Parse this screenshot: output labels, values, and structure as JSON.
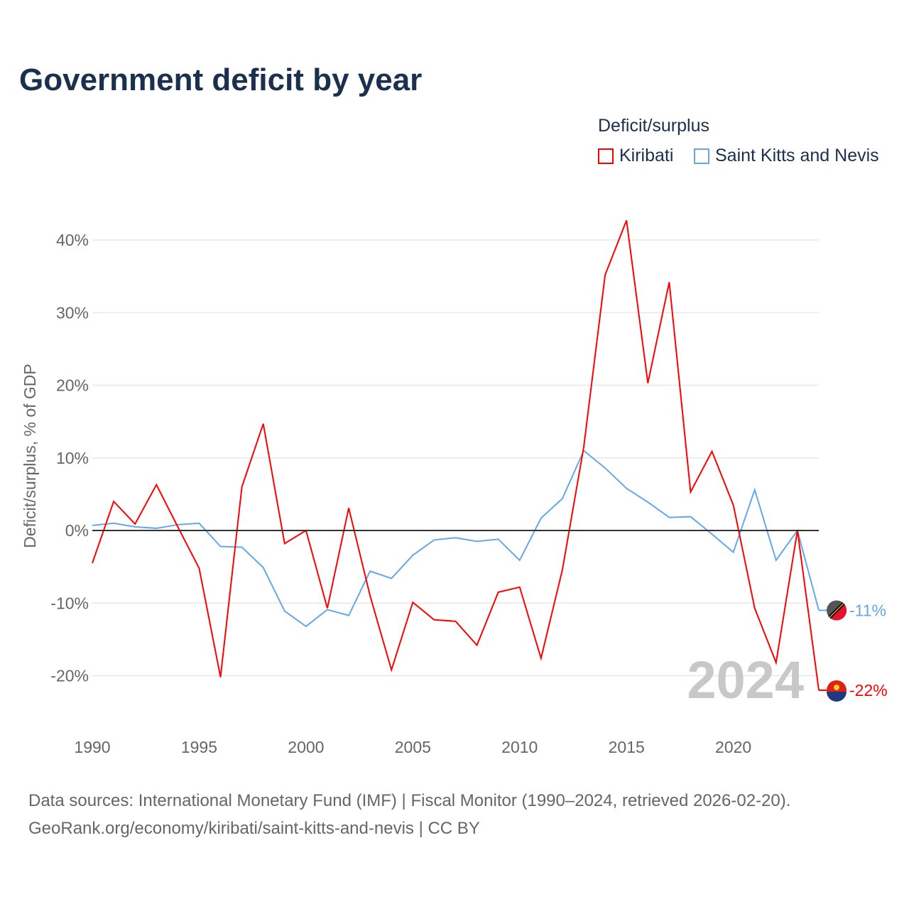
{
  "chart_data": {
    "type": "line",
    "title": "Government deficit by year",
    "xlabel": "",
    "ylabel": "Deficit/surplus, % of GDP",
    "legend_title": "Deficit/surplus",
    "legend_position": "top-right",
    "xlim": [
      1990,
      2024
    ],
    "ylim": [
      -25,
      45
    ],
    "x_ticks": [
      1990,
      1995,
      2000,
      2005,
      2010,
      2015,
      2020
    ],
    "x_tick_labels": [
      "1990",
      "1995",
      "2000",
      "2005",
      "2010",
      "2015",
      "2020"
    ],
    "y_ticks": [
      -20,
      -10,
      0,
      10,
      20,
      30,
      40
    ],
    "y_tick_labels": [
      "-20%",
      "-10%",
      "0%",
      "10%",
      "20%",
      "30%",
      "40%"
    ],
    "grid": true,
    "year_watermark": "2024",
    "x": [
      1990,
      1991,
      1992,
      1993,
      1994,
      1995,
      1996,
      1997,
      1998,
      1999,
      2000,
      2001,
      2002,
      2003,
      2004,
      2005,
      2006,
      2007,
      2008,
      2009,
      2010,
      2011,
      2012,
      2013,
      2014,
      2015,
      2016,
      2017,
      2018,
      2019,
      2020,
      2021,
      2022,
      2023,
      2024
    ],
    "series": [
      {
        "name": "Kiribati",
        "color": "#ff0000",
        "end_label": "-22%",
        "values": [
          -4.5,
          4.0,
          0.9,
          6.3,
          0.5,
          -5.2,
          -20.2,
          6.0,
          14.7,
          -1.8,
          0,
          -10.7,
          3.1,
          -9.0,
          -19.2,
          -9.9,
          -12.3,
          -12.5,
          -15.8,
          -8.5,
          -7.8,
          -17.6,
          -5.4,
          11.5,
          35.2,
          42.7,
          20.3,
          34.2,
          5.3,
          10.9,
          3.5,
          -10.7,
          -18.2,
          0,
          -22
        ]
      },
      {
        "name": "Saint Kitts and Nevis",
        "color": "#64a8ea",
        "end_label": "-11%",
        "values": [
          0.7,
          1.0,
          0.5,
          0.3,
          0.8,
          1.0,
          -2.2,
          -2.3,
          -5.1,
          -11.1,
          -13.2,
          -10.9,
          -11.7,
          -5.6,
          -6.6,
          -3.4,
          -1.3,
          -1.0,
          -1.5,
          -1.2,
          -4.1,
          1.7,
          4.4,
          11.0,
          8.6,
          5.8,
          3.9,
          1.8,
          1.9,
          -0.5,
          -3.0,
          5.6,
          -4.1,
          0,
          -11
        ]
      }
    ]
  },
  "footer": {
    "source": "Data sources: International Monetary Fund (IMF) | Fiscal Monitor (1990–2024, retrieved 2026-02-20).",
    "link": "GeoRank.org/economy/kiribati/saint-kitts-and-nevis | CC BY"
  }
}
